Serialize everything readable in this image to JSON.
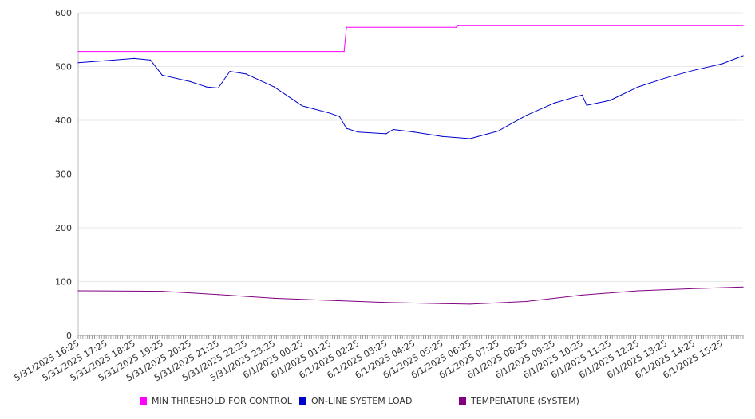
{
  "chart_data": {
    "type": "line",
    "title": "",
    "xlabel": "",
    "ylabel": "",
    "ylim": [
      0,
      600
    ],
    "yticks": [
      0,
      100,
      200,
      300,
      400,
      500,
      600
    ],
    "grid": true,
    "legend_position": "bottom",
    "x_tick_labels": [
      "5/31/2025 16:25",
      "5/31/2025 17:25",
      "5/31/2025 18:25",
      "5/31/2025 19:25",
      "5/31/2025 20:25",
      "5/31/2025 21:25",
      "5/31/2025 22:25",
      "5/31/2025 23:25",
      "6/1/2025 00:25",
      "6/1/2025 01:25",
      "6/1/2025 02:25",
      "6/1/2025 03:25",
      "6/1/2025 04:25",
      "6/1/2025 05:25",
      "6/1/2025 06:25",
      "6/1/2025 07:25",
      "6/1/2025 08:25",
      "6/1/2025 09:25",
      "6/1/2025 10:25",
      "6/1/2025 11:25",
      "6/1/2025 12:25",
      "6/1/2025 13:25",
      "6/1/2025 14:25",
      "6/1/2025 15:25"
    ],
    "series": [
      {
        "name": "MIN THRESHOLD FOR CONTROL",
        "color": "#ff00ff",
        "points": [
          [
            "5/31/2025 16:25",
            528
          ],
          [
            "6/1/2025 01:55",
            528
          ],
          [
            "6/1/2025 02:00",
            573
          ],
          [
            "6/1/2025 05:55",
            573
          ],
          [
            "6/1/2025 06:00",
            576
          ],
          [
            "6/1/2025 16:10",
            576
          ]
        ]
      },
      {
        "name": "ON-LINE SYSTEM LOAD",
        "color": "#0000cc",
        "points": [
          [
            "5/31/2025 16:25",
            507
          ],
          [
            "5/31/2025 17:25",
            511
          ],
          [
            "5/31/2025 18:25",
            515
          ],
          [
            "5/31/2025 19:00",
            512
          ],
          [
            "5/31/2025 19:25",
            484
          ],
          [
            "5/31/2025 20:25",
            472
          ],
          [
            "5/31/2025 21:00",
            462
          ],
          [
            "5/31/2025 21:25",
            460
          ],
          [
            "5/31/2025 21:50",
            491
          ],
          [
            "5/31/2025 22:25",
            486
          ],
          [
            "5/31/2025 23:25",
            462
          ],
          [
            "6/1/2025 00:25",
            427
          ],
          [
            "6/1/2025 01:25",
            413
          ],
          [
            "6/1/2025 01:45",
            407
          ],
          [
            "6/1/2025 02:00",
            385
          ],
          [
            "6/1/2025 02:25",
            378
          ],
          [
            "6/1/2025 03:25",
            375
          ],
          [
            "6/1/2025 03:40",
            383
          ],
          [
            "6/1/2025 04:25",
            378
          ],
          [
            "6/1/2025 05:25",
            370
          ],
          [
            "6/1/2025 06:25",
            366
          ],
          [
            "6/1/2025 07:25",
            380
          ],
          [
            "6/1/2025 08:25",
            409
          ],
          [
            "6/1/2025 09:25",
            432
          ],
          [
            "6/1/2025 10:25",
            447
          ],
          [
            "6/1/2025 10:35",
            428
          ],
          [
            "6/1/2025 11:25",
            437
          ],
          [
            "6/1/2025 12:25",
            462
          ],
          [
            "6/1/2025 13:25",
            479
          ],
          [
            "6/1/2025 14:25",
            493
          ],
          [
            "6/1/2025 15:25",
            505
          ],
          [
            "6/1/2025 16:10",
            520
          ]
        ]
      },
      {
        "name": "TEMPERATURE (SYSTEM)",
        "color": "#800080",
        "points": [
          [
            "5/31/2025 16:25",
            83
          ],
          [
            "5/31/2025 19:25",
            82
          ],
          [
            "5/31/2025 21:25",
            76
          ],
          [
            "5/31/2025 23:25",
            69
          ],
          [
            "6/1/2025 01:25",
            65
          ],
          [
            "6/1/2025 03:25",
            61
          ],
          [
            "6/1/2025 05:25",
            59
          ],
          [
            "6/1/2025 06:25",
            58
          ],
          [
            "6/1/2025 08:25",
            63
          ],
          [
            "6/1/2025 10:25",
            75
          ],
          [
            "6/1/2025 12:25",
            83
          ],
          [
            "6/1/2025 14:25",
            87
          ],
          [
            "6/1/2025 16:10",
            90
          ]
        ]
      }
    ]
  }
}
